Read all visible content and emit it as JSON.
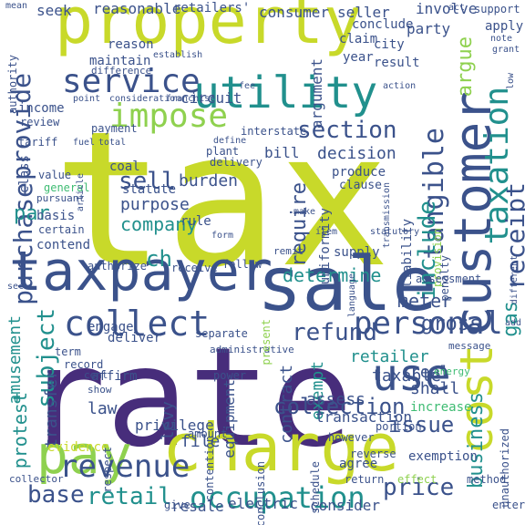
{
  "background": "#ffffff",
  "palette": {
    "yellow": "#c8d92a",
    "lime": "#8fd14f",
    "green": "#3fbc73",
    "teal": "#21908d",
    "blue": "#2e6e8e",
    "indigo": "#3b528b",
    "purple": "#472d7b",
    "dark": "#440154"
  },
  "words": [
    "tax",
    "rate",
    "property",
    "sale",
    "charge",
    "taxpayer",
    "customer",
    "pay",
    "utility",
    "cost",
    "use",
    "taxation",
    "personal",
    "service",
    "collect",
    "impose",
    "revenue",
    "occupation",
    "receipt",
    "tangible",
    "include",
    "purchase",
    "provide",
    "section",
    "business",
    "subject",
    "retail",
    "base",
    "sell",
    "refund",
    "collection",
    "price",
    "issue",
    "require",
    "gross",
    "gas",
    "meter",
    "determine",
    "par",
    "ch",
    "company",
    "purpose",
    "burden",
    "decision",
    "circuit",
    "argue",
    "retailer",
    "taxable",
    "exempt",
    "real",
    "protest",
    "amusement",
    "transfer",
    "assess",
    "shall",
    "contract",
    "law",
    "levy",
    "privilege",
    "file",
    "transaction",
    "equipment",
    "electric",
    "resale",
    "consider",
    "seller",
    "consumer",
    "reasonable",
    "retailers'",
    "seek",
    "involve",
    "apply",
    "argument",
    "party",
    "claim",
    "conclude",
    "city",
    "year",
    "result",
    "maintain",
    "reason",
    "establish",
    "difference",
    "authority",
    "income",
    "review",
    "tariff",
    "payment",
    "point",
    "consideration",
    "franchise",
    "bill",
    "interstate",
    "plant",
    "delivery",
    "produce",
    "clause",
    "class",
    "value",
    "general",
    "pursuant",
    "basis",
    "certain",
    "contend",
    "statute",
    "coal",
    "rule",
    "authorize",
    "receive",
    "follow",
    "remit",
    "supply",
    "uniformity",
    "liability",
    "provision",
    "penalty",
    "assessment",
    "engage",
    "deliver",
    "separate",
    "term",
    "record",
    "administrative",
    "cent",
    "affirm",
    "show",
    "power",
    "portion",
    "message",
    "energy",
    "increase",
    "evidence",
    "respect",
    "conclusion",
    "schedule",
    "return",
    "agree",
    "exemption",
    "effect",
    "method",
    "enter",
    "unauthorized",
    "collector",
    "give",
    "amount",
    "contention",
    "however",
    "reverse",
    "present",
    "define",
    "fuel",
    "total",
    "article",
    "make",
    "form",
    "item",
    "transmission",
    "language",
    "statutory",
    "support",
    "note",
    "grant",
    "act",
    "mean",
    "action",
    "low",
    "different",
    "add",
    "fee",
    "sec"
  ]
}
